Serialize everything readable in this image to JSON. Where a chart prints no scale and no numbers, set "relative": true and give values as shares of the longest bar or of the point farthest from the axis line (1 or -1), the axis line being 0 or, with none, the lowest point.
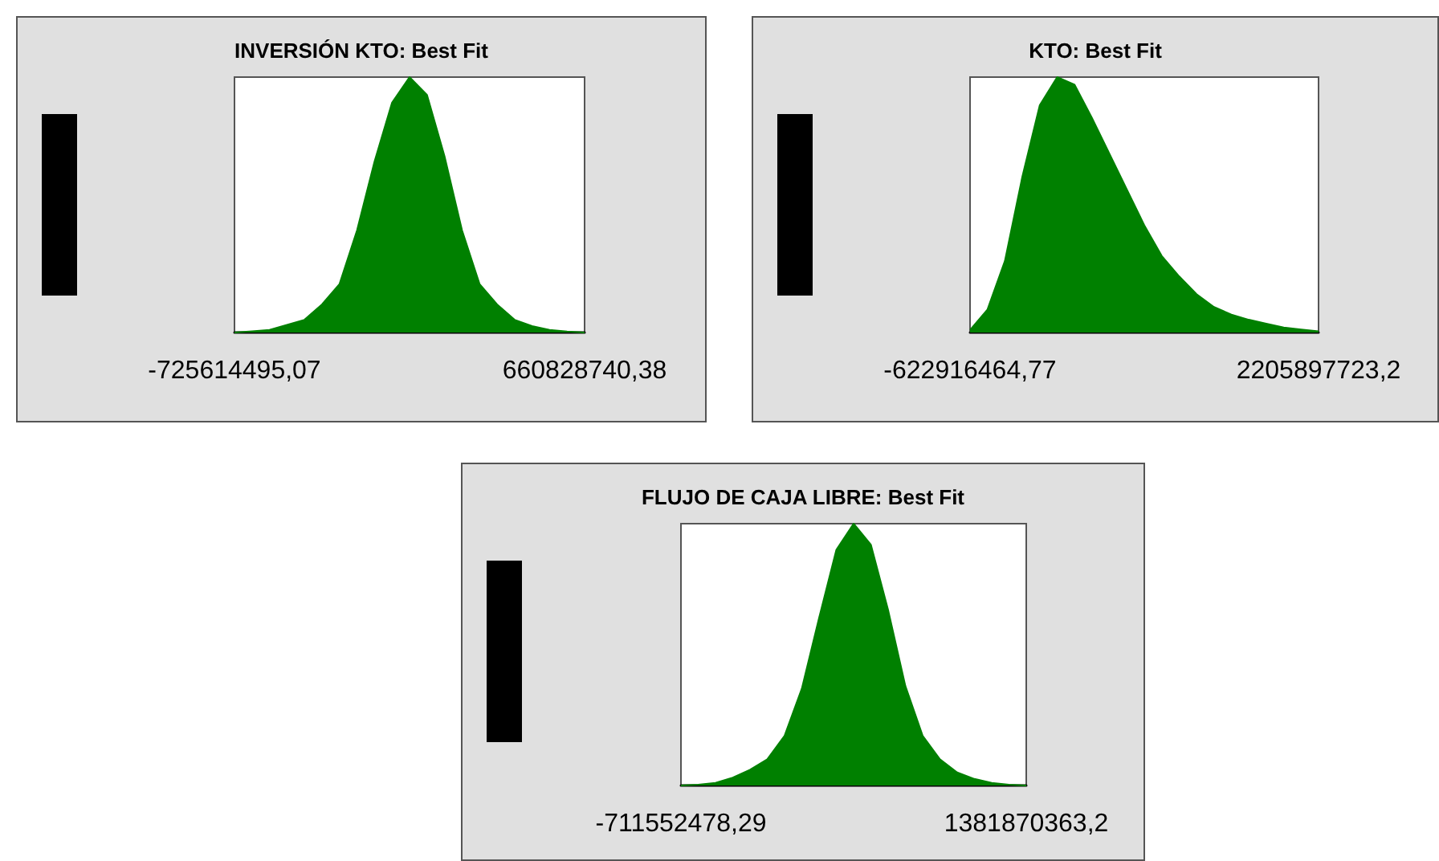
{
  "chart_data": [
    {
      "type": "area",
      "title": "INVERSIÓN KTO: Best Fit",
      "relative": true,
      "categories": [
        null,
        null,
        null,
        null,
        null,
        null,
        null,
        null,
        null,
        null,
        null,
        null,
        null,
        null,
        null,
        null,
        null,
        null,
        null,
        null,
        null
      ],
      "series": [
        {
          "color": "#008000",
          "values": [
            0,
            0.005,
            0.01,
            0.03,
            0.05,
            0.11,
            0.19,
            0.4,
            0.67,
            0.9,
            1,
            0.93,
            0.69,
            0.4,
            0.19,
            0.11,
            0.05,
            0.025,
            0.01,
            0.004,
            0
          ]
        }
      ],
      "annotations": [
        "-725614495,07",
        "660828740,38"
      ]
    },
    {
      "type": "area",
      "title": "KTO: Best Fit",
      "relative": true,
      "categories": [
        null,
        null,
        null,
        null,
        null,
        null,
        null,
        null,
        null,
        null,
        null,
        null,
        null,
        null,
        null,
        null,
        null,
        null,
        null,
        null,
        null
      ],
      "series": [
        {
          "color": "#008000",
          "values": [
            0.01,
            0.09,
            0.28,
            0.61,
            0.89,
            1,
            0.97,
            0.84,
            0.7,
            0.56,
            0.42,
            0.3,
            0.22,
            0.15,
            0.1,
            0.07,
            0.05,
            0.035,
            0.02,
            0.012,
            0.005
          ]
        }
      ],
      "annotations": [
        "-622916464,77",
        "2205897723,2"
      ]
    },
    {
      "type": "area",
      "title": "FLUJO DE CAJA LIBRE: Best Fit",
      "relative": true,
      "categories": [
        null,
        null,
        null,
        null,
        null,
        null,
        null,
        null,
        null,
        null,
        null,
        null,
        null,
        null,
        null,
        null,
        null,
        null,
        null,
        null,
        null
      ],
      "series": [
        {
          "color": "#008000",
          "values": [
            0,
            0.003,
            0.01,
            0.03,
            0.06,
            0.1,
            0.19,
            0.37,
            0.64,
            0.9,
            1,
            0.92,
            0.67,
            0.38,
            0.19,
            0.1,
            0.05,
            0.025,
            0.01,
            0.003,
            0
          ]
        }
      ],
      "annotations": [
        "-711552478,29",
        "1381870363,2"
      ]
    }
  ]
}
